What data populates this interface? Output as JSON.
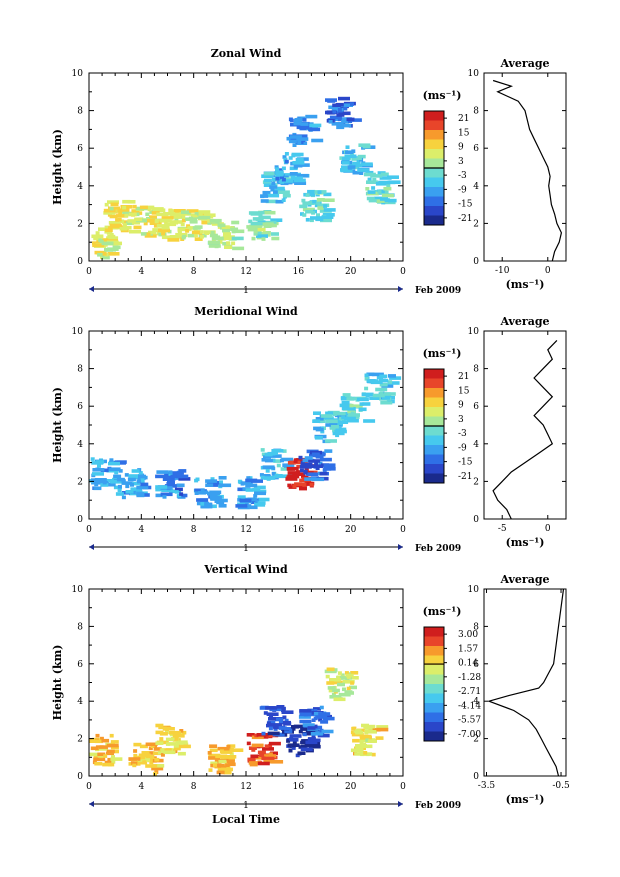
{
  "colors": {
    "scale": [
      "#1a2a8c",
      "#2a46c9",
      "#2f6fe6",
      "#3aa0f0",
      "#46c9ee",
      "#6ddcd0",
      "#a7e89a",
      "#dcee6a",
      "#f7d23e",
      "#f79a2c",
      "#e8452a",
      "#d01e1e"
    ],
    "axis": "#000000"
  },
  "chart_data": [
    {
      "type": "heatmap",
      "title": "Zonal Wind",
      "ylabel": "Height (km)",
      "ylim": [
        0,
        10
      ],
      "yticks": [
        "0",
        "2",
        "4",
        "6",
        "8",
        "10"
      ],
      "xticks": [
        "0",
        "4",
        "8",
        "12",
        "16",
        "20",
        "0"
      ],
      "xlim_hours": [
        0,
        24
      ],
      "date_label": "Feb 2009",
      "day_label": "1",
      "colorbar": {
        "unit": "(ms⁻¹)",
        "ticks": [
          "21",
          "15",
          "9",
          "3",
          "-3",
          "-9",
          "-15",
          "-21"
        ]
      },
      "values": [
        {
          "time_h": 1,
          "height_km": 1.0,
          "value": 6
        },
        {
          "time_h": 2,
          "height_km": 2.5,
          "value": 8
        },
        {
          "time_h": 4,
          "height_km": 2.2,
          "value": 7
        },
        {
          "time_h": 6,
          "height_km": 2.0,
          "value": 6
        },
        {
          "time_h": 8,
          "height_km": 2.0,
          "value": 5
        },
        {
          "time_h": 10,
          "height_km": 1.5,
          "value": 3
        },
        {
          "time_h": 13,
          "height_km": 2.0,
          "value": 0
        },
        {
          "time_h": 14,
          "height_km": 4.0,
          "value": -6
        },
        {
          "time_h": 15,
          "height_km": 5.0,
          "value": -9
        },
        {
          "time_h": 16,
          "height_km": 7.0,
          "value": -12
        },
        {
          "time_h": 17,
          "height_km": 3.0,
          "value": -3
        },
        {
          "time_h": 19,
          "height_km": 8.0,
          "value": -15
        },
        {
          "time_h": 20,
          "height_km": 5.5,
          "value": -6
        },
        {
          "time_h": 22,
          "height_km": 4.0,
          "value": -3
        }
      ],
      "average": {
        "title": "Average",
        "xlabel": "(ms⁻¹)",
        "xticks": [
          "-10",
          "0"
        ],
        "xlim": [
          -14,
          4
        ],
        "profile": [
          {
            "height_km": 0.0,
            "value": 1.0
          },
          {
            "height_km": 0.5,
            "value": 1.5
          },
          {
            "height_km": 1.0,
            "value": 2.5
          },
          {
            "height_km": 1.5,
            "value": 3.0
          },
          {
            "height_km": 2.0,
            "value": 2.0
          },
          {
            "height_km": 2.5,
            "value": 1.5
          },
          {
            "height_km": 3.0,
            "value": 0.8
          },
          {
            "height_km": 3.5,
            "value": 0.5
          },
          {
            "height_km": 4.0,
            "value": 0.2
          },
          {
            "height_km": 4.5,
            "value": 0.5
          },
          {
            "height_km": 5.0,
            "value": 0.0
          },
          {
            "height_km": 5.5,
            "value": -1.0
          },
          {
            "height_km": 6.0,
            "value": -2.0
          },
          {
            "height_km": 6.5,
            "value": -3.0
          },
          {
            "height_km": 7.0,
            "value": -4.0
          },
          {
            "height_km": 7.5,
            "value": -4.5
          },
          {
            "height_km": 8.0,
            "value": -5.0
          },
          {
            "height_km": 8.5,
            "value": -6.5
          },
          {
            "height_km": 9.0,
            "value": -11.0
          },
          {
            "height_km": 9.3,
            "value": -8.0
          },
          {
            "height_km": 9.6,
            "value": -12.0
          }
        ]
      }
    },
    {
      "type": "heatmap",
      "title": "Meridional Wind",
      "ylabel": "Height (km)",
      "ylim": [
        0,
        10
      ],
      "yticks": [
        "0",
        "2",
        "4",
        "6",
        "8",
        "10"
      ],
      "xticks": [
        "0",
        "4",
        "8",
        "12",
        "16",
        "20",
        "0"
      ],
      "xlim_hours": [
        0,
        24
      ],
      "date_label": "Feb 2009",
      "day_label": "1",
      "colorbar": {
        "unit": "(ms⁻¹)",
        "ticks": [
          "21",
          "15",
          "9",
          "3",
          "-3",
          "-9",
          "-15",
          "-21"
        ]
      },
      "values": [
        {
          "time_h": 1,
          "height_km": 2.5,
          "value": -9
        },
        {
          "time_h": 3,
          "height_km": 2.0,
          "value": -10
        },
        {
          "time_h": 6,
          "height_km": 2.0,
          "value": -12
        },
        {
          "time_h": 9,
          "height_km": 1.5,
          "value": -10
        },
        {
          "time_h": 12,
          "height_km": 1.5,
          "value": -9
        },
        {
          "time_h": 14,
          "height_km": 3.0,
          "value": -6
        },
        {
          "time_h": 16,
          "height_km": 2.5,
          "value": 21
        },
        {
          "time_h": 17,
          "height_km": 3.0,
          "value": -15
        },
        {
          "time_h": 18,
          "height_km": 5.0,
          "value": -6
        },
        {
          "time_h": 20,
          "height_km": 6.0,
          "value": -3
        },
        {
          "time_h": 22,
          "height_km": 7.0,
          "value": -6
        }
      ],
      "average": {
        "title": "Average",
        "xlabel": "(ms⁻¹)",
        "xticks": [
          "-5",
          "0"
        ],
        "xlim": [
          -7,
          2
        ],
        "profile": [
          {
            "height_km": 0.0,
            "value": -4.0
          },
          {
            "height_km": 0.5,
            "value": -4.5
          },
          {
            "height_km": 1.0,
            "value": -5.5
          },
          {
            "height_km": 1.5,
            "value": -6.0
          },
          {
            "height_km": 2.0,
            "value": -5.0
          },
          {
            "height_km": 2.5,
            "value": -4.0
          },
          {
            "height_km": 3.0,
            "value": -2.5
          },
          {
            "height_km": 3.5,
            "value": -1.0
          },
          {
            "height_km": 4.0,
            "value": 0.5
          },
          {
            "height_km": 4.5,
            "value": 0.0
          },
          {
            "height_km": 5.0,
            "value": -0.5
          },
          {
            "height_km": 5.5,
            "value": -1.5
          },
          {
            "height_km": 6.0,
            "value": -0.5
          },
          {
            "height_km": 6.5,
            "value": 0.5
          },
          {
            "height_km": 7.0,
            "value": -0.5
          },
          {
            "height_km": 7.5,
            "value": -1.5
          },
          {
            "height_km": 8.0,
            "value": -0.5
          },
          {
            "height_km": 8.5,
            "value": 0.5
          },
          {
            "height_km": 9.0,
            "value": 0.0
          },
          {
            "height_km": 9.5,
            "value": 1.0
          }
        ]
      }
    },
    {
      "type": "heatmap",
      "title": "Vertical Wind",
      "ylabel": "Height (km)",
      "xlabel": "Local Time",
      "ylim": [
        0,
        10
      ],
      "yticks": [
        "0",
        "2",
        "4",
        "6",
        "8",
        "10"
      ],
      "xticks": [
        "0",
        "4",
        "8",
        "12",
        "16",
        "20",
        "0"
      ],
      "xlim_hours": [
        0,
        24
      ],
      "date_label": "Feb 2009",
      "day_label": "1",
      "colorbar": {
        "unit": "(ms⁻¹)",
        "ticks": [
          "3.00",
          "1.57",
          "0.14",
          "-1.28",
          "-2.71",
          "-4.14",
          "-5.57",
          "-7.00"
        ]
      },
      "values": [
        {
          "time_h": 1,
          "height_km": 1.5,
          "value": 0.5
        },
        {
          "time_h": 4,
          "height_km": 1.0,
          "value": 0.8
        },
        {
          "time_h": 6,
          "height_km": 2.0,
          "value": 0.3
        },
        {
          "time_h": 10,
          "height_km": 1.0,
          "value": 0.5
        },
        {
          "time_h": 13,
          "height_km": 1.5,
          "value": 2.5
        },
        {
          "time_h": 14,
          "height_km": 3.0,
          "value": -6.0
        },
        {
          "time_h": 16,
          "height_km": 2.0,
          "value": -7.0
        },
        {
          "time_h": 17,
          "height_km": 3.0,
          "value": -5.5
        },
        {
          "time_h": 19,
          "height_km": 5.0,
          "value": -1.0
        },
        {
          "time_h": 21,
          "height_km": 2.0,
          "value": 0.0
        }
      ],
      "average": {
        "title": "Average",
        "xlabel": "(ms⁻¹)",
        "xticks": [
          "-3.5",
          "-0.5"
        ],
        "xlim": [
          -3.6,
          -0.3
        ],
        "profile": [
          {
            "height_km": 0.0,
            "value": -0.6
          },
          {
            "height_km": 0.5,
            "value": -0.7
          },
          {
            "height_km": 1.0,
            "value": -0.9
          },
          {
            "height_km": 1.5,
            "value": -1.1
          },
          {
            "height_km": 2.0,
            "value": -1.3
          },
          {
            "height_km": 2.5,
            "value": -1.5
          },
          {
            "height_km": 3.0,
            "value": -1.8
          },
          {
            "height_km": 3.5,
            "value": -2.4
          },
          {
            "height_km": 4.0,
            "value": -3.4
          },
          {
            "height_km": 4.3,
            "value": -2.6
          },
          {
            "height_km": 4.7,
            "value": -1.4
          },
          {
            "height_km": 5.0,
            "value": -1.2
          },
          {
            "height_km": 5.5,
            "value": -1.0
          },
          {
            "height_km": 6.0,
            "value": -0.8
          },
          {
            "height_km": 7.0,
            "value": -0.7
          },
          {
            "height_km": 8.0,
            "value": -0.6
          },
          {
            "height_km": 9.0,
            "value": -0.5
          },
          {
            "height_km": 10.0,
            "value": -0.4
          }
        ]
      }
    }
  ]
}
